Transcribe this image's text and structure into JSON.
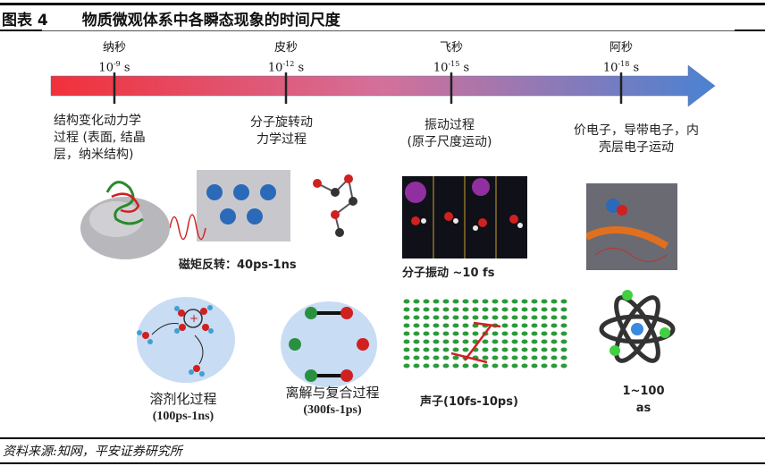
{
  "figure": {
    "number": "图表 4",
    "title": "物质微观体系中各瞬态现象的时间尺度"
  },
  "timeline": {
    "colors": {
      "start": "#f0303a",
      "mid": "#c07ab0",
      "end": "#4a80d0"
    },
    "ticks": [
      {
        "name": "纳秒",
        "base": "10",
        "exponent": "-9",
        "unit": " s"
      },
      {
        "name": "皮秒",
        "base": "10",
        "exponent": "-12",
        "unit": " s"
      },
      {
        "name": "飞秒",
        "base": "10",
        "exponent": "-15",
        "unit": " s"
      },
      {
        "name": "阿秒",
        "base": "10",
        "exponent": "-18",
        "unit": " s"
      }
    ],
    "descriptions": [
      {
        "lines": [
          "结构变化动力学",
          "过程 (表面, 结晶",
          "层，纳米结构)"
        ]
      },
      {
        "lines": [
          "分子旋转动",
          "力学过程"
        ]
      },
      {
        "lines": [
          "振动过程",
          "(原子尺度运动)"
        ]
      },
      {
        "lines": [
          "价电子，导带电子，内",
          "壳层电子运动"
        ]
      }
    ]
  },
  "illustrations": {
    "row1": [
      {
        "icon": "protein-structure-image"
      },
      {
        "icon": "magnetic-moment-image",
        "caption": "磁矩反转：40ps-1ns"
      },
      {
        "icon": "molecular-vibration-image",
        "caption": "分子振动 ~10 fs"
      },
      {
        "icon": "electron-dynamics-image"
      }
    ],
    "row2": [
      {
        "icon": "solvation-image",
        "caption": [
          "溶剂化过程",
          "(100ps-1ns)"
        ]
      },
      {
        "icon": "dissociation-recombination-image",
        "caption": [
          "离解与复合过程",
          "(300fs-1ps)"
        ]
      },
      {
        "icon": "phonon-lattice-image",
        "caption": "声子(10fs-10ps)"
      },
      {
        "icon": "atom-image",
        "caption": "1~100 as"
      }
    ]
  },
  "source": "资料来源:知网，平安证券研究所"
}
